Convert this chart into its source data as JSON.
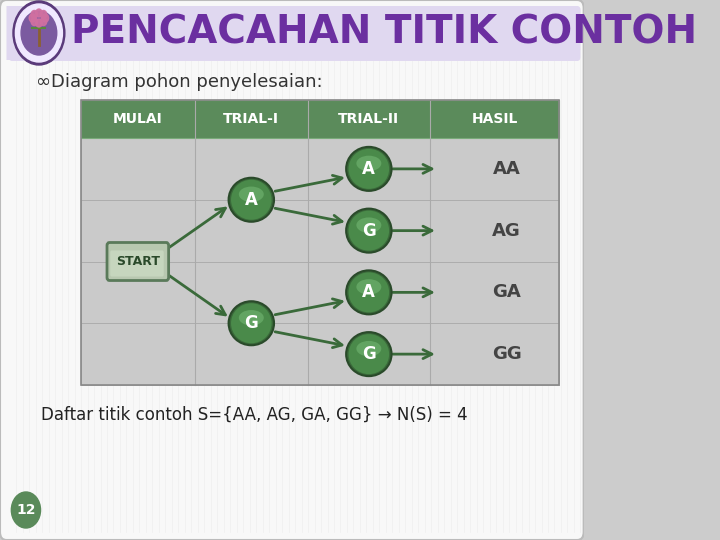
{
  "title": "PENCACAHAN TITIK CONTOH",
  "title_color": "#6B2FA0",
  "subtitle": "∞Diagram pohon penyelesaian:",
  "bg_color": "#F5F5F5",
  "stripe_color": "#E8E8E8",
  "title_bg": "#D8C8E8",
  "table_header_color": "#5B8B5B",
  "table_row_color": "#C8C8C8",
  "node_fill_outer": "#4A7A4A",
  "node_fill_mid": "#5A9A5A",
  "node_fill_inner": "#7ABF7A",
  "node_edge": "#2A5A2A",
  "node_text_color": "#FFFFFF",
  "start_fill": "#B8C8B8",
  "start_edge": "#6A8A6A",
  "start_text_color": "#1A3A1A",
  "arrow_color": "#3A6A3A",
  "result_text_color": "#444444",
  "headers": [
    "MULAI",
    "TRIAL-I",
    "TRIAL-II",
    "HASIL"
  ],
  "footer_text": "Daftar titik contoh S={AA, AG, GA, GG} → N(S) = 4",
  "page_number": "12",
  "page_circle_color": "#5A8A5A",
  "slide_border_color": "#CCCCCC"
}
